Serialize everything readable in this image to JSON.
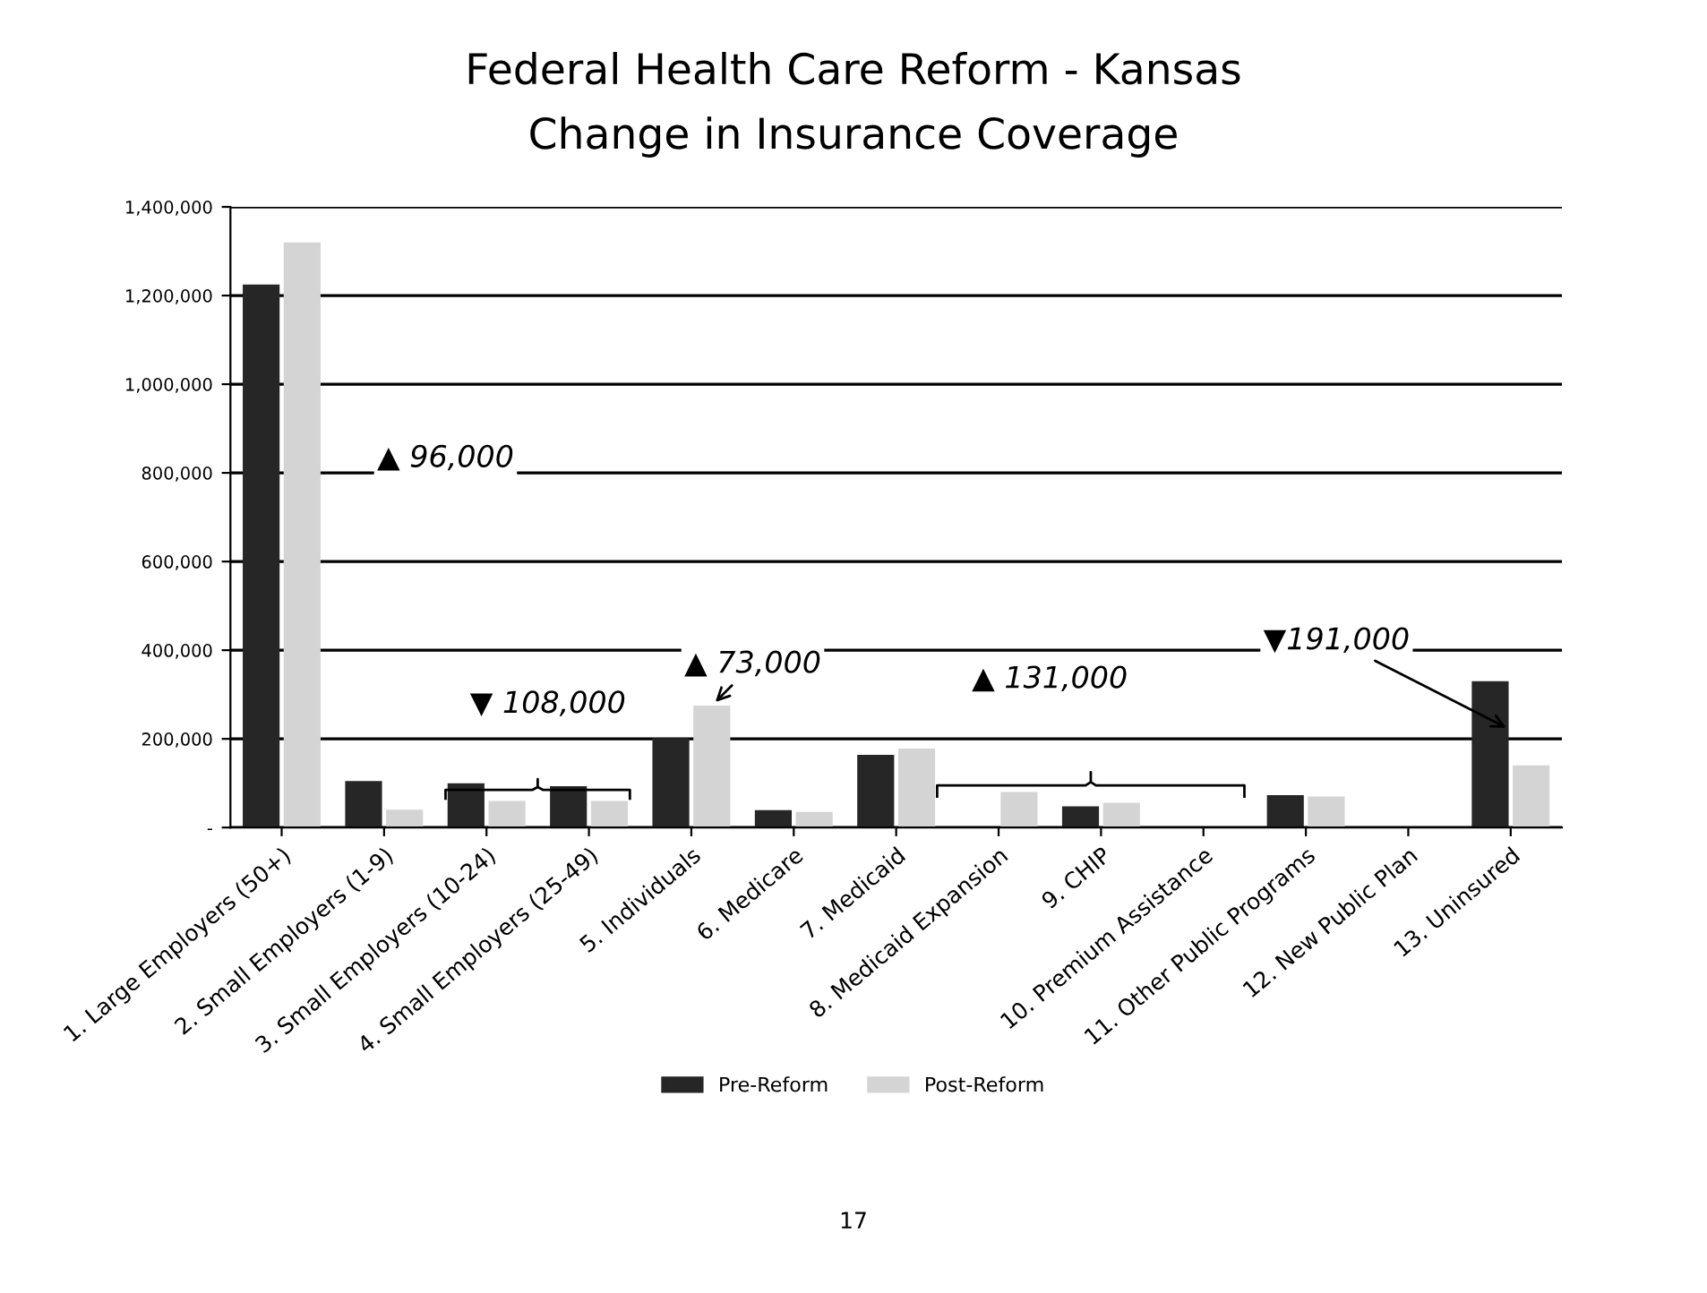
{
  "chart_data": {
    "type": "bar",
    "title": "Federal Health Care Reform - Kansas",
    "subtitle": "Change in Insurance Coverage",
    "categories": [
      "1. Large Employers (50+)",
      "2. Small Employers (1-9)",
      "3. Small Employers (10-24)",
      "4. Small Employers (25-49)",
      "5. Individuals",
      "6. Medicare",
      "7. Medicaid",
      "8. Medicaid Expansion",
      "9. CHIP",
      "10. Premium Assistance",
      "11. Other Public Programs",
      "12. New Public Plan",
      "13. Uninsured"
    ],
    "series": [
      {
        "name": "Pre-Reform",
        "color": "#262626",
        "values": [
          1225000,
          105000,
          100000,
          93000,
          202000,
          39000,
          164000,
          0,
          48000,
          0,
          73000,
          0,
          330000
        ]
      },
      {
        "name": "Post-Reform",
        "color": "#d4d4d4",
        "values": [
          1320000,
          40000,
          60000,
          60000,
          275000,
          35000,
          178000,
          80000,
          56000,
          0,
          70000,
          0,
          140000
        ]
      }
    ],
    "ylim": [
      0,
      1400000
    ],
    "yticks": [
      {
        "value": 0,
        "label": "-"
      },
      {
        "value": 200000,
        "label": "200,000"
      },
      {
        "value": 400000,
        "label": "400,000"
      },
      {
        "value": 600000,
        "label": "600,000"
      },
      {
        "value": 800000,
        "label": "800,000"
      },
      {
        "value": 1000000,
        "label": "1,000,000"
      },
      {
        "value": 1200000,
        "label": "1,200,000"
      },
      {
        "value": 1400000,
        "label": "1,400,000"
      }
    ],
    "grid": "y",
    "legend": "bottom",
    "annotations": [
      "▲ 96,000",
      "▼ 108,000",
      {
        "text": "▲ 73,000",
        "x": "5. Individuals",
        "y": 275000
      },
      "▲ 131,000",
      {
        "text": "▼191,000",
        "x": "13. Uninsured",
        "y": 220000
      },
      "17"
    ]
  }
}
